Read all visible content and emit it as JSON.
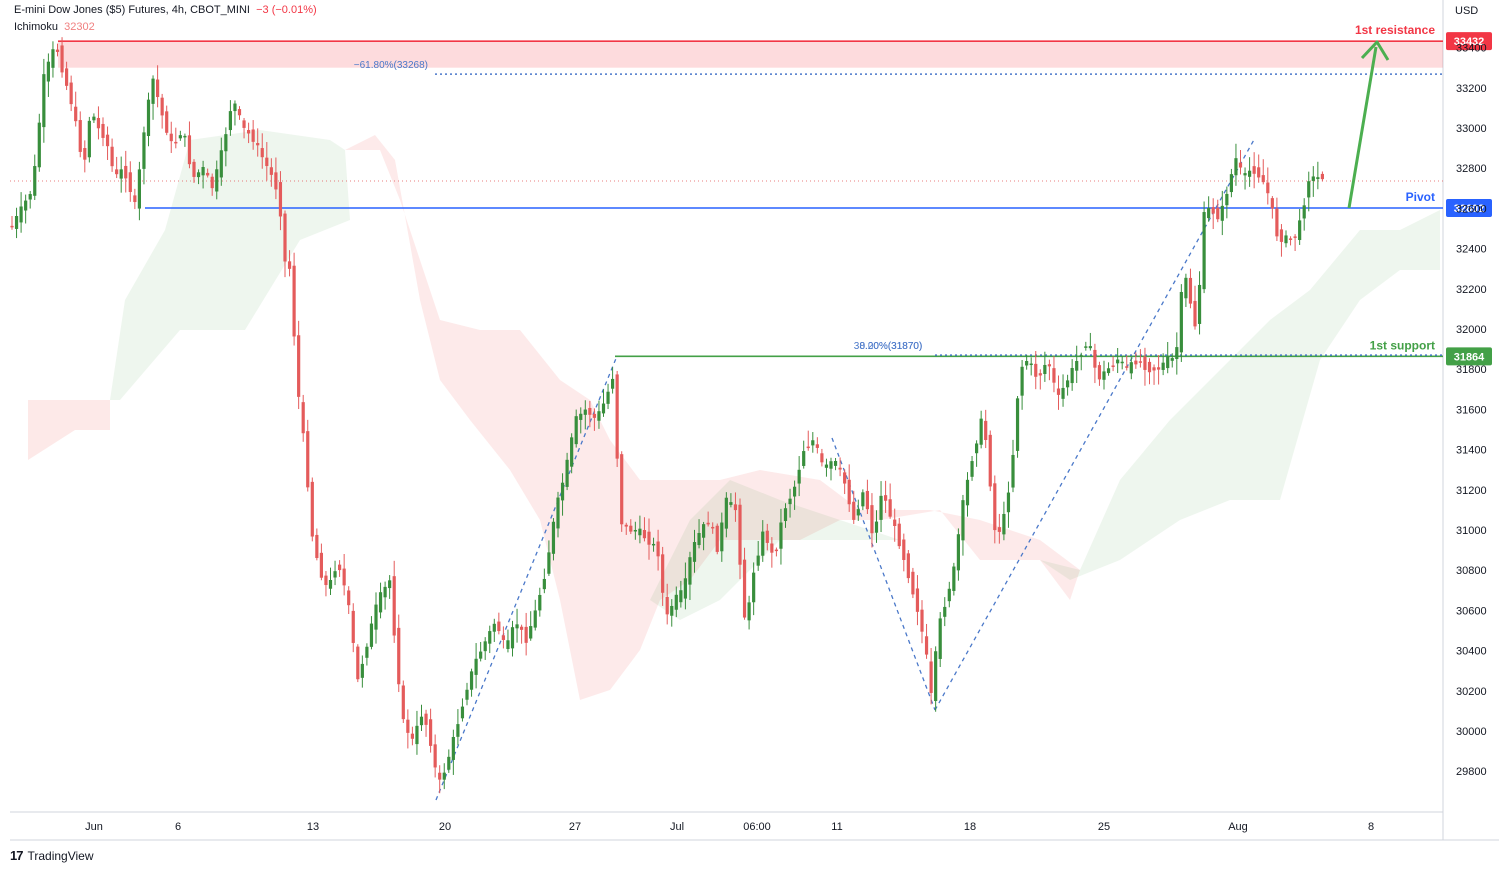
{
  "header": {
    "symbol": "E-mini Dow Jones ($5) Futures, 4h, CBOT_MINI",
    "change": "−3 (−0.01%)",
    "indicator_name": "Ichimoku",
    "indicator_value": "32302"
  },
  "price_unit": "USD",
  "footer": {
    "brand": "TradingView"
  },
  "colors": {
    "up": "#388e3c",
    "down": "#e45b5b",
    "resistance": "#f23645",
    "pivot": "#2962ff",
    "support": "#43a047",
    "fib": "#4a78c9"
  },
  "chart_data": {
    "type": "candlestick",
    "timeframe": "4h",
    "y_ticks": [
      29800,
      30000,
      30200,
      30400,
      30600,
      30800,
      31000,
      31200,
      31400,
      31600,
      31800,
      32000,
      32200,
      32400,
      32600,
      32800,
      33000,
      33200,
      33400
    ],
    "ylim": [
      29680,
      33490
    ],
    "x_ticks": [
      "Jun",
      "6",
      "13",
      "20",
      "27",
      "Jul",
      "06:00",
      "11",
      "18",
      "25",
      "Aug",
      "8"
    ],
    "levels": [
      {
        "name": "1st resistance",
        "label": "1st resistance",
        "value": 33432,
        "tag": "33432"
      },
      {
        "name": "Pivot",
        "label": "Pivot",
        "value": 32602,
        "tag": "32602"
      },
      {
        "name": "1st support",
        "label": "1st support",
        "value": 31864,
        "tag": "31864"
      }
    ],
    "fib_labels": [
      {
        "text": "−61.80%(33268)",
        "value": 33268
      },
      {
        "text": "38.20%(31870)",
        "value": 31870
      },
      {
        "text": "0.00%(31870)",
        "value": 31870
      }
    ],
    "path": [
      [
        1,
        32550
      ],
      [
        13,
        32500
      ],
      [
        24,
        32600
      ],
      [
        35,
        32700
      ],
      [
        46,
        33250
      ],
      [
        58,
        33420
      ],
      [
        64,
        33300
      ],
      [
        75,
        33100
      ],
      [
        86,
        32800
      ],
      [
        93,
        33100
      ],
      [
        100,
        33000
      ],
      [
        108,
        32950
      ],
      [
        117,
        32750
      ],
      [
        126,
        32800
      ],
      [
        138,
        32600
      ],
      [
        145,
        32950
      ],
      [
        155,
        33250
      ],
      [
        165,
        33050
      ],
      [
        175,
        32900
      ],
      [
        185,
        33000
      ],
      [
        195,
        32750
      ],
      [
        205,
        32800
      ],
      [
        215,
        32700
      ],
      [
        225,
        32900
      ],
      [
        235,
        33150
      ],
      [
        245,
        33000
      ],
      [
        255,
        32950
      ],
      [
        265,
        32850
      ],
      [
        275,
        32750
      ],
      [
        282,
        32650
      ],
      [
        285,
        32350
      ],
      [
        292,
        32300
      ],
      [
        300,
        31700
      ],
      [
        307,
        31400
      ],
      [
        315,
        30950
      ],
      [
        322,
        30800
      ],
      [
        330,
        30700
      ],
      [
        340,
        30850
      ],
      [
        350,
        30650
      ],
      [
        360,
        30250
      ],
      [
        370,
        30450
      ],
      [
        380,
        30650
      ],
      [
        392,
        30750
      ],
      [
        398,
        30400
      ],
      [
        405,
        30050
      ],
      [
        415,
        29950
      ],
      [
        425,
        30100
      ],
      [
        435,
        29900
      ],
      [
        440,
        29720
      ],
      [
        448,
        29820
      ],
      [
        458,
        30000
      ],
      [
        468,
        30200
      ],
      [
        478,
        30350
      ],
      [
        488,
        30450
      ],
      [
        498,
        30550
      ],
      [
        508,
        30400
      ],
      [
        518,
        30550
      ],
      [
        528,
        30450
      ],
      [
        538,
        30600
      ],
      [
        548,
        30800
      ],
      [
        558,
        31100
      ],
      [
        568,
        31300
      ],
      [
        578,
        31550
      ],
      [
        588,
        31600
      ],
      [
        598,
        31550
      ],
      [
        608,
        31650
      ],
      [
        616,
        31780
      ],
      [
        622,
        31050
      ],
      [
        630,
        31000
      ],
      [
        640,
        31000
      ],
      [
        650,
        30950
      ],
      [
        660,
        30900
      ],
      [
        668,
        30550
      ],
      [
        676,
        30650
      ],
      [
        686,
        30700
      ],
      [
        694,
        30900
      ],
      [
        703,
        31000
      ],
      [
        712,
        31050
      ],
      [
        720,
        30900
      ],
      [
        728,
        31150
      ],
      [
        738,
        31100
      ],
      [
        748,
        30500
      ],
      [
        756,
        30800
      ],
      [
        766,
        31000
      ],
      [
        776,
        30850
      ],
      [
        786,
        31100
      ],
      [
        796,
        31200
      ],
      [
        806,
        31400
      ],
      [
        816,
        31450
      ],
      [
        826,
        31300
      ],
      [
        836,
        31350
      ],
      [
        846,
        31250
      ],
      [
        856,
        31050
      ],
      [
        866,
        31200
      ],
      [
        876,
        30950
      ],
      [
        884,
        31200
      ],
      [
        894,
        31050
      ],
      [
        904,
        30900
      ],
      [
        912,
        30750
      ],
      [
        920,
        30600
      ],
      [
        928,
        30400
      ],
      [
        934,
        30150
      ],
      [
        940,
        30500
      ],
      [
        948,
        30650
      ],
      [
        956,
        30800
      ],
      [
        964,
        31100
      ],
      [
        974,
        31350
      ],
      [
        984,
        31550
      ],
      [
        990,
        31400
      ],
      [
        996,
        31000
      ],
      [
        1004,
        31000
      ],
      [
        1014,
        31300
      ],
      [
        1022,
        31800
      ],
      [
        1030,
        31850
      ],
      [
        1040,
        31750
      ],
      [
        1050,
        31850
      ],
      [
        1060,
        31650
      ],
      [
        1070,
        31750
      ],
      [
        1080,
        31850
      ],
      [
        1090,
        31950
      ],
      [
        1100,
        31750
      ],
      [
        1110,
        31800
      ],
      [
        1120,
        31850
      ],
      [
        1130,
        31800
      ],
      [
        1140,
        31850
      ],
      [
        1150,
        31800
      ],
      [
        1160,
        31800
      ],
      [
        1170,
        31850
      ],
      [
        1178,
        31850
      ],
      [
        1186,
        32300
      ],
      [
        1194,
        32100
      ],
      [
        1200,
        31950
      ],
      [
        1204,
        32550
      ],
      [
        1212,
        32600
      ],
      [
        1222,
        32550
      ],
      [
        1230,
        32700
      ],
      [
        1238,
        32850
      ],
      [
        1246,
        32750
      ],
      [
        1254,
        32800
      ],
      [
        1264,
        32750
      ],
      [
        1272,
        32650
      ],
      [
        1280,
        32450
      ],
      [
        1288,
        32450
      ],
      [
        1296,
        32450
      ],
      [
        1304,
        32550
      ],
      [
        1310,
        32750
      ],
      [
        1318,
        32750
      ],
      [
        1326,
        32760
      ]
    ],
    "annotations": [
      "green arrow from Pivot up to 1st resistance",
      "dashed Fibonacci zigzag lines"
    ]
  }
}
